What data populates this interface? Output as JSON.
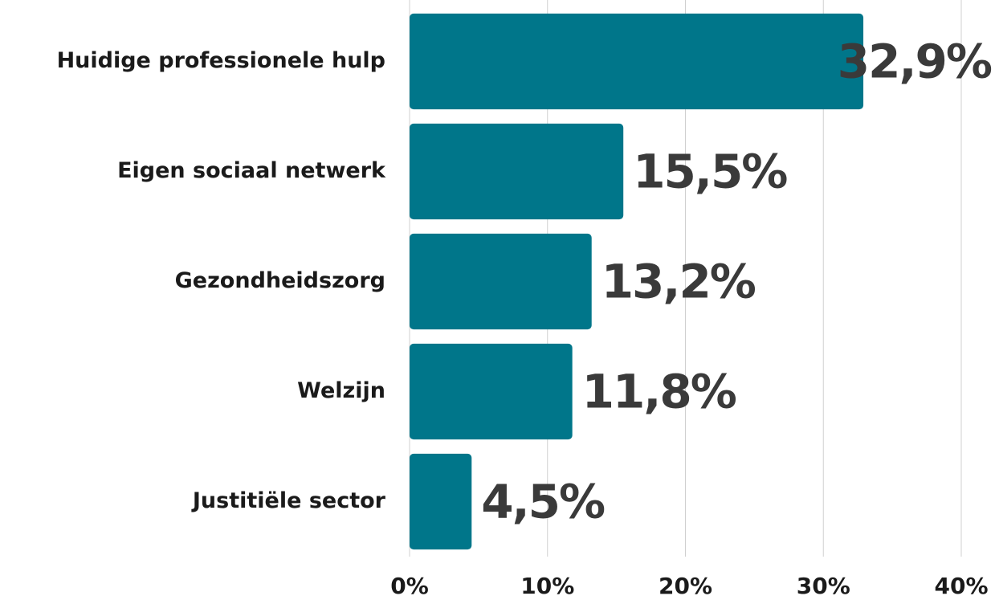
{
  "chart_data": {
    "type": "bar",
    "orientation": "horizontal",
    "categories": [
      "Huidige professionele hulp",
      "Eigen sociaal netwerk",
      "Gezondheidszorg",
      "Welzijn",
      "Justitiële sector"
    ],
    "values": [
      32.9,
      15.5,
      13.2,
      11.8,
      4.5
    ],
    "value_labels": [
      "32,9%",
      "15,5%",
      "13,2%",
      "11,8%",
      "4,5%"
    ],
    "color": "#00768a",
    "xlim": [
      0,
      40
    ],
    "xticks": [
      {
        "value": 0,
        "label": "0%"
      },
      {
        "value": 10,
        "label": "10%"
      },
      {
        "value": 20,
        "label": "20%"
      },
      {
        "value": 30,
        "label": "30%"
      },
      {
        "value": 40,
        "label": "40%"
      }
    ],
    "grid": true
  }
}
